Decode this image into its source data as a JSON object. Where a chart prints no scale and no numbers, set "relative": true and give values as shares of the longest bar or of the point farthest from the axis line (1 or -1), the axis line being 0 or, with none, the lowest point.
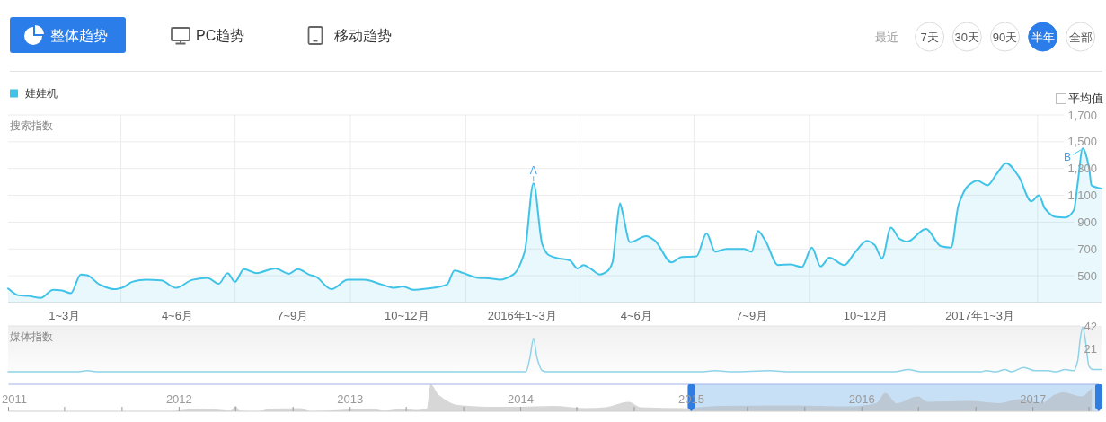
{
  "chart_data": [
    {
      "type": "other",
      "annotations": [
        "整体趋势",
        "PC趋势",
        "移动趋势",
        "最近",
        "7天",
        "30天",
        "90天",
        "半年",
        "全部",
        "平均值"
      ]
    },
    {
      "type": "area",
      "ylabel": "搜索指数",
      "legend": "top left",
      "grid": true,
      "x": [
        "2015-01-01",
        "2015-01-09",
        "2015-01-17",
        "2015-01-27",
        "2015-02-06",
        "2015-02-13",
        "2015-02-20",
        "2015-02-28",
        "2015-03-05",
        "2015-03-15",
        "2015-03-27",
        "2015-04-03",
        "2015-04-10",
        "2015-04-21",
        "2015-05-03",
        "2015-05-15",
        "2015-05-28",
        "2015-06-09",
        "2015-06-18",
        "2015-06-25",
        "2015-07-01",
        "2015-07-08",
        "2015-07-18",
        "2015-08-02",
        "2015-08-13",
        "2015-08-20",
        "2015-08-30",
        "2015-09-03",
        "2015-09-16",
        "2015-09-29",
        "2015-10-12",
        "2015-10-26",
        "2015-11-05",
        "2015-11-12",
        "2015-11-20",
        "2015-12-02",
        "2015-12-17",
        "2015-12-23",
        "2015-12-30",
        "2016-01-11",
        "2016-01-21",
        "2016-01-28",
        "2016-02-08",
        "2016-02-17",
        "2016-02-24",
        "2016-03-02",
        "2016-03-07",
        "2016-03-15",
        "2016-03-24",
        "2016-03-30",
        "2016-04-04",
        "2016-04-10",
        "2016-04-17",
        "2016-04-23",
        "2016-04-27",
        "2016-04-30",
        "2016-05-03",
        "2016-05-05",
        "2016-05-11",
        "2016-05-24",
        "2016-05-31",
        "2016-06-13",
        "2016-06-21",
        "2016-07-03",
        "2016-07-11",
        "2016-07-18",
        "2016-07-27",
        "2016-08-10",
        "2016-08-16",
        "2016-08-21",
        "2016-08-27",
        "2016-09-06",
        "2016-09-16",
        "2016-09-25",
        "2016-10-03",
        "2016-10-10",
        "2016-10-17",
        "2016-10-29",
        "2016-11-06",
        "2016-11-16",
        "2016-11-22",
        "2016-11-28",
        "2016-12-05",
        "2016-12-12",
        "2016-12-18",
        "2017-01-02",
        "2017-01-14",
        "2017-01-22",
        "2017-01-28",
        "2017-02-05",
        "2017-02-12",
        "2017-02-20",
        "2017-02-27",
        "2017-03-07",
        "2017-03-17",
        "2017-03-27",
        "2017-04-02",
        "2017-04-07",
        "2017-04-15",
        "2017-04-23",
        "2017-04-30",
        "2017-05-03",
        "2017-05-07",
        "2017-05-12",
        "2017-05-14",
        "2017-05-22"
      ],
      "series": [
        {
          "name": "娃娃机",
          "color": "#40c3e8",
          "values": [
            405,
            355,
            350,
            335,
            395,
            390,
            370,
            510,
            505,
            435,
            400,
            415,
            455,
            470,
            465,
            410,
            470,
            485,
            440,
            520,
            455,
            550,
            520,
            555,
            515,
            550,
            505,
            495,
            400,
            470,
            470,
            435,
            410,
            420,
            395,
            405,
            435,
            540,
            520,
            485,
            480,
            470,
            510,
            680,
            1190,
            735,
            655,
            630,
            615,
            555,
            580,
            550,
            510,
            535,
            600,
            840,
            1040,
            975,
            750,
            795,
            760,
            600,
            640,
            645,
            815,
            680,
            700,
            700,
            680,
            835,
            760,
            580,
            585,
            565,
            710,
            570,
            635,
            580,
            670,
            760,
            730,
            630,
            860,
            775,
            755,
            850,
            720,
            710,
            1030,
            1175,
            1210,
            1175,
            1255,
            1340,
            1240,
            1055,
            1100,
            1000,
            940,
            935,
            990,
            1190,
            1450,
            1310,
            1175,
            1150
          ]
        }
      ],
      "xlim": [
        "2015-01-01",
        "2017-05-22"
      ],
      "ylim": [
        300,
        1700
      ],
      "yticks": [
        500,
        700,
        900,
        {
          "value": 1100,
          "label": "1,100"
        },
        {
          "value": 1300,
          "label": "1,300"
        },
        {
          "value": 1500,
          "label": "1,500"
        },
        {
          "value": 1700,
          "label": "1,700"
        }
      ],
      "xticks": [
        {
          "value": "2015-02-15",
          "label": "1~3月"
        },
        {
          "value": "2015-05-16",
          "label": "4~6月"
        },
        {
          "value": "2015-08-16",
          "label": "7~9月"
        },
        {
          "value": "2015-11-15",
          "label": "10~12月"
        },
        {
          "value": "2016-02-15",
          "label": "2016年1~3月"
        },
        {
          "value": "2016-05-16",
          "label": "4~6月"
        },
        {
          "value": "2016-08-16",
          "label": "7~9月"
        },
        {
          "value": "2016-11-15",
          "label": "10~12月"
        },
        {
          "value": "2017-02-14",
          "label": "2017年1~3月"
        },
        {
          "value": "2015-04-01",
          "label": null
        },
        {
          "value": "2015-07-01",
          "label": null
        },
        {
          "value": "2015-10-01",
          "label": null
        },
        {
          "value": "2016-01-01",
          "label": null
        },
        {
          "value": "2016-04-01",
          "label": null
        },
        {
          "value": "2016-07-01",
          "label": null
        },
        {
          "value": "2016-10-01",
          "label": null
        },
        {
          "value": "2017-01-01",
          "label": null
        },
        {
          "value": "2017-04-01",
          "label": null
        }
      ],
      "annotations": [
        {
          "text": "A",
          "x": "2016-02-24",
          "y": 1190
        },
        {
          "text": "B",
          "x": "2017-05-07",
          "y": 1450
        }
      ]
    },
    {
      "type": "line",
      "ylabel": "媒体指数",
      "tick_labels": "y",
      "x": [
        "2015-01-01",
        "2015-02-25",
        "2015-03-05",
        "2015-03-14",
        "2016-02-14",
        "2016-02-18",
        "2016-02-21",
        "2016-02-24",
        "2016-02-27",
        "2016-03-02",
        "2016-03-05",
        "2016-07-06",
        "2016-07-18",
        "2016-08-01",
        "2016-08-30",
        "2016-09-16",
        "2016-12-08",
        "2016-12-19",
        "2016-12-29",
        "2017-02-15",
        "2017-02-19",
        "2017-02-27",
        "2017-03-06",
        "2017-03-11",
        "2017-03-21",
        "2017-03-30",
        "2017-04-09",
        "2017-04-16",
        "2017-04-23",
        "2017-04-30",
        "2017-05-03",
        "2017-05-05",
        "2017-05-07",
        "2017-05-09",
        "2017-05-12",
        "2017-05-15",
        "2017-05-22"
      ],
      "series": [
        {
          "color": "#8fd3e8",
          "values": [
            0,
            0,
            1,
            0,
            0,
            0,
            12,
            30,
            12,
            1,
            0,
            0,
            1,
            0,
            1,
            0,
            0,
            2,
            0,
            0,
            1,
            0,
            2,
            0,
            4,
            1,
            1,
            0,
            2,
            1,
            10,
            30,
            41,
            30,
            5,
            2,
            2
          ]
        }
      ],
      "xlim": [
        "2015-01-01",
        "2017-05-22"
      ],
      "ylim": [
        0,
        42
      ],
      "yticks": [
        21,
        42
      ]
    },
    {
      "type": "area",
      "relative": true,
      "tick_labels": "x",
      "color": "#b0b0b0",
      "x": [
        "2011-12-20",
        "2012-02-10",
        "2012-03-10",
        "2012-04-20",
        "2012-05-01",
        "2012-05-10",
        "2012-06-20",
        "2012-07-15",
        "2012-09-15",
        "2012-10-10",
        "2013-02-15",
        "2013-03-15",
        "2013-04-25",
        "2013-05-20",
        "2013-06-14",
        "2013-06-22",
        "2013-07-10",
        "2013-08-20",
        "2013-10-20",
        "2014-01-01",
        "2014-03-10",
        "2014-05-20",
        "2014-07-01",
        "2014-08-20",
        "2014-09-15",
        "2014-12-20",
        "2015-03-01",
        "2015-08-01",
        "2015-12-01",
        "2016-02-01",
        "2016-02-20",
        "2016-03-15",
        "2016-04-30",
        "2016-05-20",
        "2016-08-21",
        "2016-10-20",
        "2016-12-05",
        "2017-01-20",
        "2017-02-15",
        "2017-03-07",
        "2017-04-15",
        "2017-05-07"
      ],
      "values": [
        0,
        0.1,
        0.08,
        0.02,
        0.2,
        0.02,
        0,
        0.1,
        0.12,
        0,
        0.1,
        0.02,
        0.1,
        0.05,
        0.1,
        1,
        0.6,
        0.23,
        0.17,
        0.17,
        0.2,
        0.12,
        0.15,
        0.35,
        0.15,
        0.12,
        0.2,
        0.22,
        0.18,
        0.3,
        0.68,
        0.3,
        0.55,
        0.35,
        0.38,
        0.3,
        0.45,
        0.3,
        0.6,
        0.7,
        0.55,
        0.85
      ],
      "xlim": [
        "2011-01-01",
        "2017-05-22"
      ],
      "xticks": [
        {
          "value": "2011-01-01",
          "label": "2011"
        },
        {
          "value": "2012-01-01",
          "label": "2012"
        },
        {
          "value": "2013-01-01",
          "label": "2013"
        },
        {
          "value": "2014-01-01",
          "label": "2014"
        },
        {
          "value": "2015-01-01",
          "label": "2015"
        },
        {
          "value": "2016-01-01",
          "label": "2016"
        },
        {
          "value": "2017-01-01",
          "label": "2017"
        },
        {
          "value": "2011-05-01",
          "label": null
        },
        {
          "value": "2011-09-01",
          "label": null
        },
        {
          "value": "2012-05-01",
          "label": null
        },
        {
          "value": "2012-09-01",
          "label": null
        },
        {
          "value": "2013-05-01",
          "label": null
        },
        {
          "value": "2013-09-01",
          "label": null
        },
        {
          "value": "2014-05-01",
          "label": null
        },
        {
          "value": "2014-09-01",
          "label": null
        },
        {
          "value": "2015-05-01",
          "label": null
        },
        {
          "value": "2015-09-01",
          "label": null
        },
        {
          "value": "2016-05-01",
          "label": null
        },
        {
          "value": "2016-09-01",
          "label": null
        },
        {
          "value": "2017-05-01",
          "label": null
        }
      ],
      "bands": [
        {
          "axis": "x",
          "from": "2015-01-01",
          "to": "2017-05-22",
          "color": "#c8e0f6"
        }
      ]
    }
  ]
}
